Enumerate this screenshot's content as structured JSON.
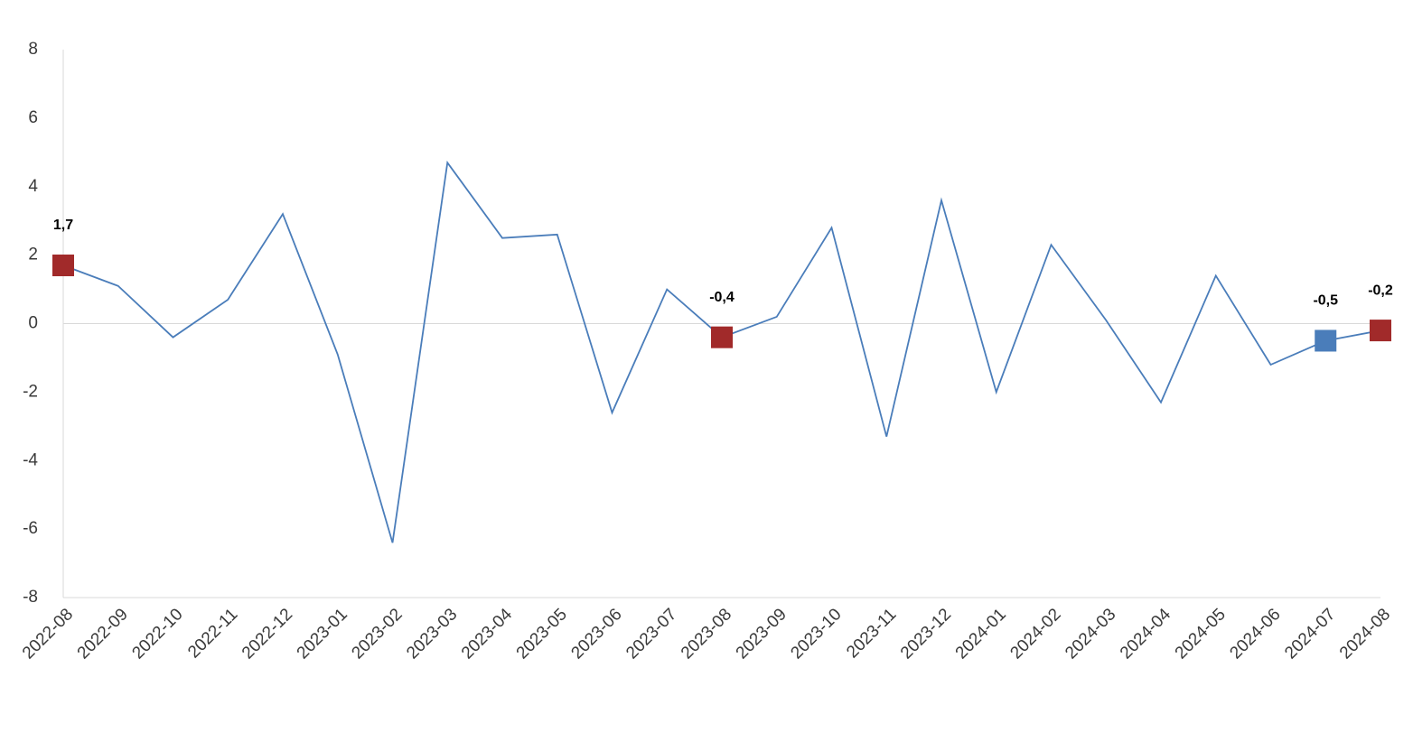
{
  "chart_data": {
    "type": "line",
    "categories": [
      "2022-08",
      "2022-09",
      "2022-10",
      "2022-11",
      "2022-12",
      "2023-01",
      "2023-02",
      "2023-03",
      "2023-04",
      "2023-05",
      "2023-06",
      "2023-07",
      "2023-08",
      "2023-09",
      "2023-10",
      "2023-11",
      "2023-12",
      "2024-01",
      "2024-02",
      "2024-03",
      "2024-04",
      "2024-05",
      "2024-06",
      "2024-07",
      "2024-08"
    ],
    "values": [
      1.7,
      1.1,
      -0.4,
      0.7,
      3.2,
      -0.9,
      -6.4,
      4.7,
      2.5,
      2.6,
      -2.6,
      1.0,
      -0.4,
      0.2,
      2.8,
      -3.3,
      3.6,
      -2.0,
      2.3,
      0.1,
      -2.3,
      1.4,
      -1.2,
      -0.5,
      -0.2
    ],
    "value_labels": [
      "1,7",
      null,
      null,
      null,
      null,
      null,
      null,
      null,
      null,
      null,
      null,
      null,
      "-0,4",
      null,
      null,
      null,
      null,
      null,
      null,
      null,
      null,
      null,
      null,
      "-0,5",
      "-0,2"
    ],
    "marker_colors": [
      "#a12a2a",
      null,
      null,
      null,
      null,
      null,
      null,
      null,
      null,
      null,
      null,
      null,
      "#a12a2a",
      null,
      null,
      null,
      null,
      null,
      null,
      null,
      null,
      null,
      null,
      "#4a7dba",
      "#a12a2a"
    ],
    "color": "#4a7dba",
    "ylim": [
      -8,
      8
    ],
    "yticks": [
      -8,
      -6,
      -4,
      -2,
      0,
      2,
      4,
      6,
      8
    ],
    "grid": false
  }
}
